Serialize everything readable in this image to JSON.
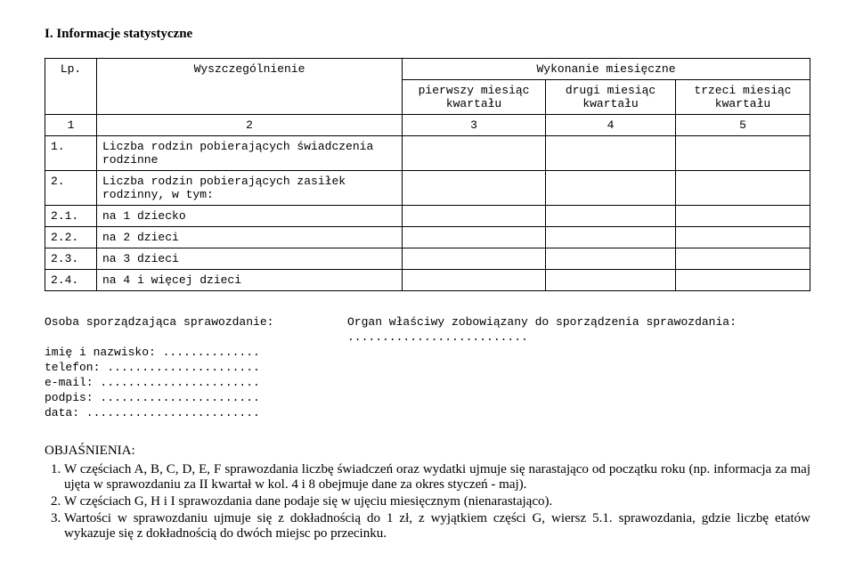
{
  "section_label": "I.  Informacje statystyczne",
  "table": {
    "headers": {
      "lp": "Lp.",
      "desc": "Wyszczególnienie",
      "wyk": "Wykonanie miesięczne",
      "c1": "pierwszy miesiąc kwartału",
      "c2": "drugi miesiąc kwartału",
      "c3": "trzeci miesiąc kwartału",
      "n1": "1",
      "n2": "2",
      "n3": "3",
      "n4": "4",
      "n5": "5"
    },
    "rows": [
      {
        "lp": "1.",
        "desc": "Liczba rodzin pobierających świadczenia rodzinne"
      },
      {
        "lp": "2.",
        "desc": "Liczba rodzin pobierających zasiłek rodzinny, w tym:"
      },
      {
        "lp": "2.1.",
        "desc": "na 1 dziecko"
      },
      {
        "lp": "2.2.",
        "desc": "na 2 dzieci"
      },
      {
        "lp": "2.3.",
        "desc": "na 3 dzieci"
      },
      {
        "lp": "2.4.",
        "desc": "na 4 i więcej dzieci"
      }
    ]
  },
  "signer": {
    "title": "Osoba sporządzająca sprawozdanie:",
    "name_label": "imię i nazwisko: ..............",
    "phone_label": "telefon: ......................",
    "email_label": "e-mail: .......................",
    "sign_label": "podpis: .......................",
    "date_label": "data: ........................."
  },
  "organ": {
    "title": "Organ właściwy zobowiązany do sporządzenia sprawozdania:",
    "dots": ".........................."
  },
  "obj": {
    "title": "OBJAŚNIENIA:",
    "items": [
      "W częściach A, B, C, D, E, F sprawozdania liczbę świadczeń oraz wydatki ujmuje się narastająco od początku roku (np. informacja za maj ujęta w sprawozdaniu za II kwartał w kol. 4 i 8 obejmuje dane za okres styczeń - maj).",
      "W częściach G, H i I sprawozdania dane podaje się w ujęciu miesięcznym (nienarastająco).",
      "Wartości w sprawozdaniu ujmuje się z dokładnością do 1 zł, z wyjątkiem części G, wiersz 5.1. sprawozdania, gdzie liczbę etatów wykazuje się z dokładnością do dwóch miejsc po przecinku."
    ]
  }
}
